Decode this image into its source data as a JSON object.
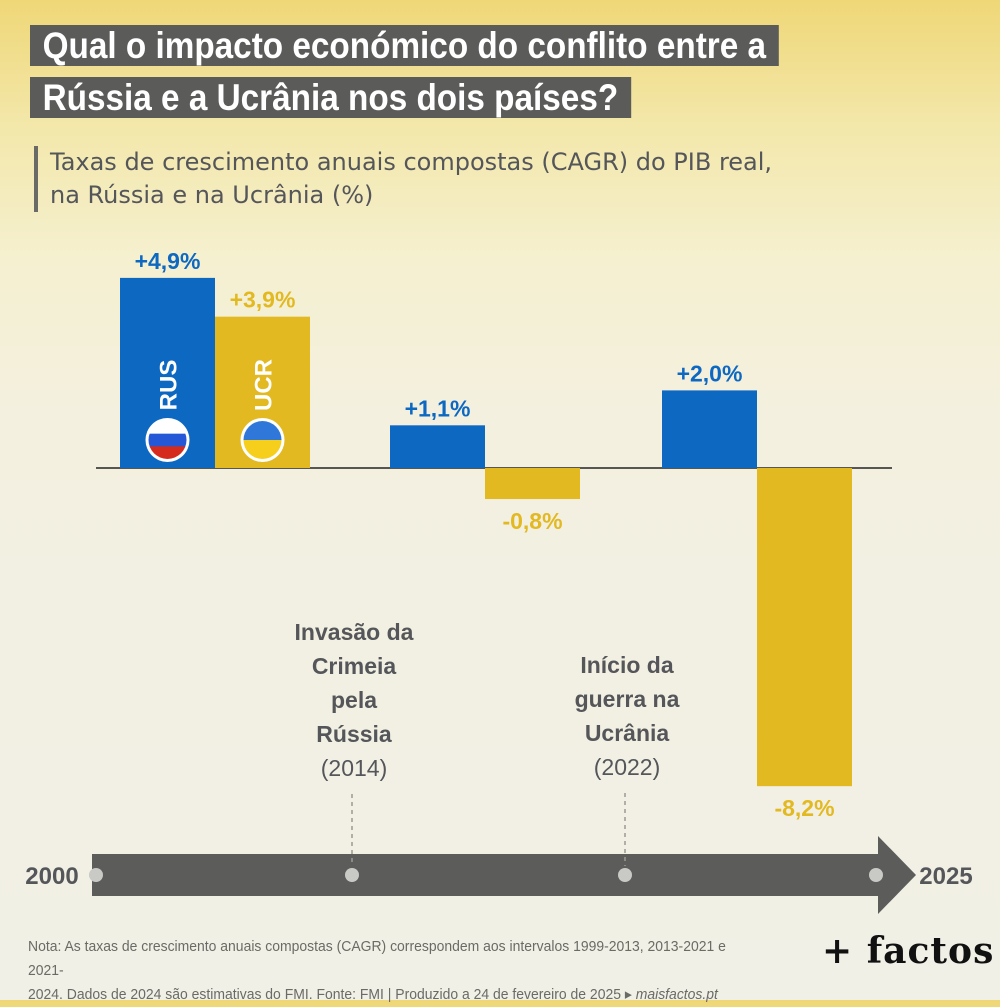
{
  "header": {
    "title_line1": "Qual o impacto económico do conflito entre a",
    "title_line2": "Rússia e a Ucrânia nos dois países?",
    "subtitle_line1": "Taxas de crescimento anuais compostas (CAGR) do PIB real,",
    "subtitle_line2": "na Rússia e na Ucrânia (%)"
  },
  "colors": {
    "russia": "#0d68c2",
    "ukraine": "#e2b921",
    "timeline": "#5c5d5a",
    "text_dark": "#55565a"
  },
  "chart_data": {
    "type": "bar",
    "series": [
      {
        "name": "RUS",
        "values": [
          4.9,
          1.1,
          2.0
        ],
        "labels": [
          "+4,9%",
          "+1,1%",
          "+2,0%"
        ]
      },
      {
        "name": "UCR",
        "values": [
          3.9,
          -0.8,
          -8.2
        ],
        "labels": [
          "+3,9%",
          "-0,8%",
          "-8,2%"
        ]
      }
    ],
    "flag_icons": [
      "russia-flag-icon",
      "ukraine-flag-icon"
    ]
  },
  "timeline": {
    "start": "2000",
    "end": "2025",
    "events": [
      {
        "lines": [
          "Invasão da",
          "Crimeia",
          "pela",
          "Rússia"
        ],
        "year": "(2014)"
      },
      {
        "lines": [
          "Início da",
          "guerra na",
          "Ucrânia"
        ],
        "year": "(2022)"
      }
    ]
  },
  "footer": {
    "note_line1": "Nota: As taxas de crescimento anuais compostas (CAGR) correspondem aos intervalos 1999-2013, 2013-2021 e 2021-",
    "note_line2": "2024. Dados de 2024 são estimativas do FMI. Fonte: FMI | Produzido a 24 de fevereiro de 2025 ▸ ",
    "site": "maisfactos.pt",
    "brand": "+ factos"
  }
}
